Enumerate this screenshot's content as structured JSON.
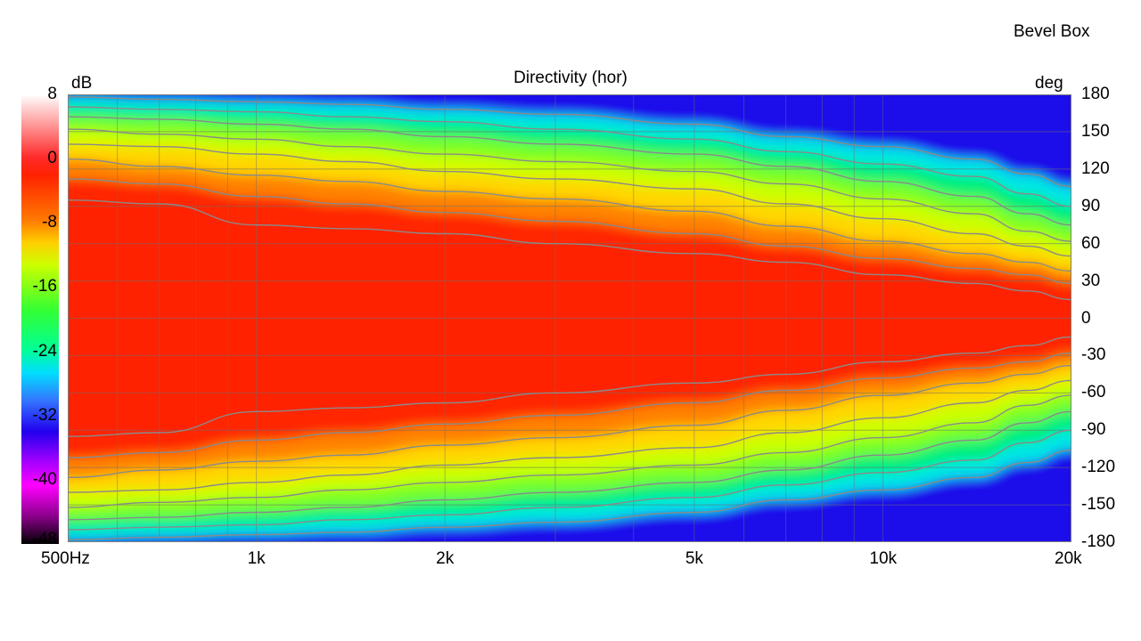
{
  "header": {
    "corner_label": "Bevel Box",
    "title": "Directivity (hor)"
  },
  "chart_data": {
    "type": "heatmap",
    "title": "Directivity (hor)",
    "colorbar": {
      "unit": "dB",
      "ticks": [
        8,
        0,
        -8,
        -16,
        -24,
        -32,
        -40,
        -48
      ],
      "range": [
        -48,
        8
      ],
      "colors": [
        "#ffffff",
        "#ff2200",
        "#ffd000",
        "#33ff33",
        "#00ddff",
        "#2200ee",
        "#ff00ff",
        "#000000"
      ]
    },
    "x_axis": {
      "scale": "log",
      "range": [
        500,
        20000
      ],
      "ticks": [
        {
          "value": 500,
          "label": "500Hz"
        },
        {
          "value": 1000,
          "label": "1k"
        },
        {
          "value": 2000,
          "label": "2k"
        },
        {
          "value": 5000,
          "label": "5k"
        },
        {
          "value": 10000,
          "label": "10k"
        },
        {
          "value": 20000,
          "label": "20k"
        }
      ]
    },
    "y_axis": {
      "unit": "deg",
      "range": [
        -180,
        180
      ],
      "ticks": [
        180,
        150,
        120,
        90,
        60,
        30,
        0,
        -30,
        -60,
        -90,
        -120,
        -150,
        -180
      ]
    },
    "contour_levels_db": [
      -3,
      -6,
      -9,
      -12,
      -15,
      -18,
      -21,
      -24
    ],
    "frequencies_hz": [
      500,
      700,
      1000,
      1400,
      2000,
      3000,
      5000,
      7000,
      10000,
      14000,
      17000,
      20000
    ],
    "contour_angles_deg": {
      "-3": [
        95,
        92,
        75,
        72,
        68,
        60,
        52,
        45,
        35,
        28,
        22,
        15
      ],
      "-6": [
        112,
        108,
        98,
        92,
        85,
        78,
        68,
        58,
        48,
        40,
        35,
        28
      ],
      "-9": [
        128,
        122,
        115,
        110,
        102,
        96,
        86,
        74,
        62,
        52,
        45,
        38
      ],
      "-12": [
        140,
        138,
        132,
        126,
        118,
        112,
        104,
        92,
        80,
        68,
        58,
        50
      ],
      "-15": [
        152,
        148,
        144,
        138,
        132,
        126,
        118,
        108,
        96,
        84,
        70,
        62
      ],
      "-18": [
        162,
        160,
        156,
        152,
        146,
        140,
        132,
        122,
        110,
        98,
        84,
        75
      ],
      "-21": [
        170,
        168,
        166,
        162,
        158,
        152,
        144,
        134,
        124,
        114,
        100,
        90
      ],
      "-24": [
        178,
        176,
        174,
        172,
        168,
        164,
        156,
        146,
        138,
        128,
        116,
        106
      ]
    }
  }
}
